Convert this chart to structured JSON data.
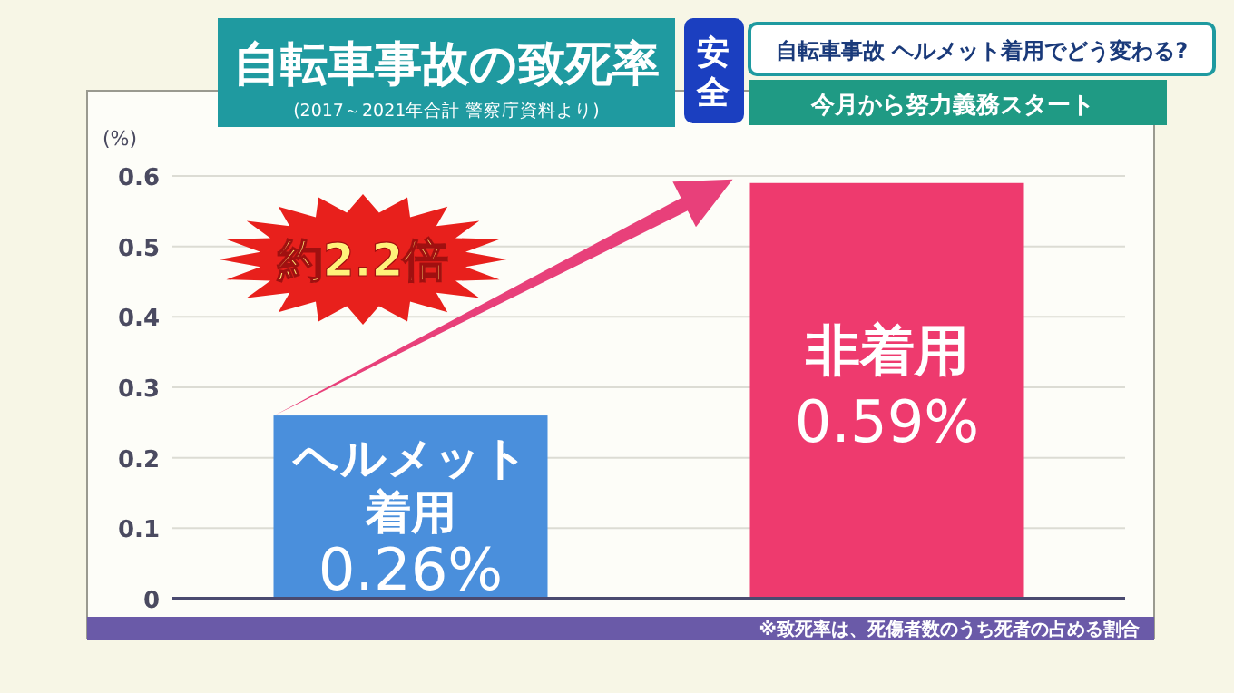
{
  "chart_data": {
    "type": "bar",
    "title": "自転車事故の致死率",
    "subtitle": "(2017～2021年合計 警察庁資料より)",
    "ylabel": "(%)",
    "categories": [
      "ヘルメット着用",
      "非着用"
    ],
    "values": [
      0.26,
      0.59
    ],
    "colors": [
      "#4a8fdc",
      "#ee3a6e"
    ],
    "value_labels": [
      "0.26%",
      "0.59%"
    ],
    "ylim": [
      0,
      0.6
    ],
    "yticks": [
      0,
      0.1,
      0.2,
      0.3,
      0.4,
      0.5,
      0.6
    ],
    "grid": "y",
    "annotations": [
      "約2.2倍",
      "※致死率は、死傷者数のうち死者の占める割合",
      "安全",
      "自転車事故 ヘルメット着用でどう変わる?",
      "今月から努力義務スタート"
    ]
  }
}
